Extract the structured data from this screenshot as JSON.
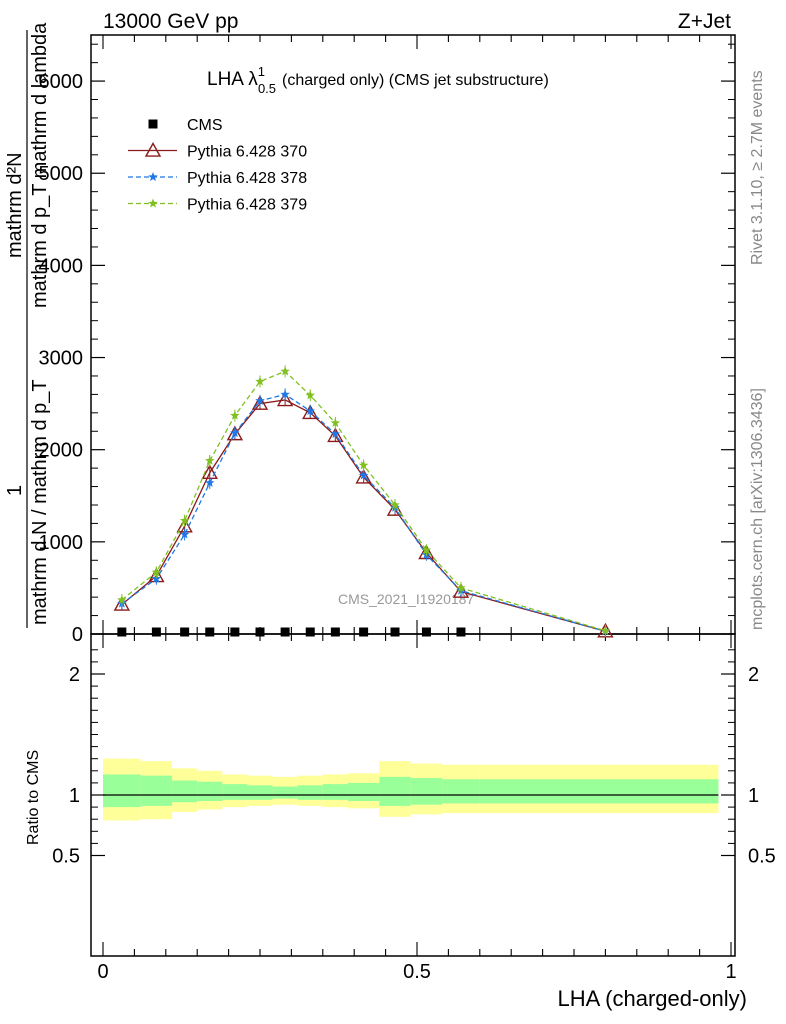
{
  "header": {
    "energy_label": "13000 GeV pp",
    "process_label": "Z+Jet"
  },
  "side": {
    "rivet_label": "Rivet 3.1.10, ≥ 2.7M events",
    "mcplots_label": "mcplots.cern.ch [arXiv:1306.3436]"
  },
  "watermark": "CMS_2021_I1920187",
  "chart_data": [
    {
      "type": "line",
      "title": "LHA λ¹₀.₅ (charged only) (CMS jet substructure)",
      "title_parts": {
        "main": "LHA λ",
        "sup": "1",
        "sub": "0.5",
        "rest": "(charged only) (CMS jet substructure)"
      },
      "ylabel_line1": "mathrm d²N",
      "ylabel_line2": "mathrm d p_T mathrm d lambda",
      "ylabel_line3": "mathrm d N / mathrm d p_T",
      "ylabel_factor": "1",
      "xlim": [
        0,
        1
      ],
      "ylim": [
        0,
        6500
      ],
      "yticks": [
        0,
        1000,
        2000,
        3000,
        4000,
        5000,
        6000
      ],
      "ytick_labels": [
        "0",
        "1000",
        "2000",
        "3000",
        "4000",
        "5000",
        "6000"
      ],
      "legend_position": "top-left",
      "series": [
        {
          "name": "CMS",
          "color": "#000000",
          "marker": "square",
          "x": [
            0.03,
            0.085,
            0.13,
            0.17,
            0.21,
            0.25,
            0.29,
            0.33,
            0.37,
            0.415,
            0.465,
            0.515,
            0.57
          ],
          "y": [
            0,
            0,
            0,
            0,
            0,
            0,
            0,
            0,
            0,
            0,
            0,
            0,
            0
          ]
        },
        {
          "name": "Pythia 6.428 370",
          "color": "#8b1a1a",
          "marker": "triangle",
          "x": [
            0.03,
            0.085,
            0.13,
            0.17,
            0.21,
            0.25,
            0.29,
            0.33,
            0.37,
            0.415,
            0.465,
            0.515,
            0.57,
            0.8
          ],
          "y": [
            320,
            630,
            1170,
            1750,
            2170,
            2500,
            2540,
            2400,
            2150,
            1700,
            1350,
            880,
            460,
            30
          ]
        },
        {
          "name": "Pythia 6.428 378",
          "color": "#1e78e6",
          "marker": "star",
          "x": [
            0.03,
            0.085,
            0.13,
            0.17,
            0.21,
            0.25,
            0.29,
            0.33,
            0.37,
            0.415,
            0.465,
            0.515,
            0.57,
            0.8
          ],
          "y": [
            330,
            600,
            1080,
            1640,
            2180,
            2530,
            2600,
            2420,
            2170,
            1720,
            1370,
            860,
            470,
            30
          ]
        },
        {
          "name": "Pythia 6.428 379",
          "color": "#80c020",
          "marker": "star",
          "x": [
            0.03,
            0.085,
            0.13,
            0.17,
            0.21,
            0.25,
            0.29,
            0.33,
            0.37,
            0.415,
            0.465,
            0.515,
            0.57,
            0.8
          ],
          "y": [
            370,
            670,
            1230,
            1880,
            2370,
            2740,
            2850,
            2590,
            2290,
            1830,
            1400,
            910,
            500,
            35
          ]
        }
      ]
    },
    {
      "type": "area",
      "ylabel": "Ratio to CMS",
      "xlabel": "LHA (charged-only)",
      "xlim": [
        0,
        1
      ],
      "ylim": [
        0.38,
        2.3
      ],
      "xticks": [
        0,
        0.5,
        1
      ],
      "xtick_labels": [
        "0",
        "0.5",
        "1"
      ],
      "yticks": [
        0.5,
        1,
        2
      ],
      "ytick_labels": [
        "0.5",
        "1",
        "2"
      ],
      "bin_edges": [
        0.0,
        0.06,
        0.11,
        0.15,
        0.19,
        0.23,
        0.27,
        0.31,
        0.35,
        0.39,
        0.44,
        0.49,
        0.54,
        0.6,
        1.0
      ],
      "bin_range_shown": [
        0.0,
        0.98
      ],
      "yellow_band_low": [
        0.79,
        0.8,
        0.86,
        0.88,
        0.9,
        0.91,
        0.92,
        0.91,
        0.9,
        0.89,
        0.82,
        0.84,
        0.85,
        0.85
      ],
      "yellow_band_high": [
        1.3,
        1.28,
        1.22,
        1.2,
        1.17,
        1.16,
        1.15,
        1.16,
        1.17,
        1.18,
        1.28,
        1.26,
        1.25,
        1.25
      ],
      "green_band_low": [
        0.9,
        0.91,
        0.94,
        0.95,
        0.96,
        0.96,
        0.97,
        0.96,
        0.96,
        0.95,
        0.91,
        0.92,
        0.93,
        0.93
      ],
      "green_band_high": [
        1.17,
        1.16,
        1.12,
        1.11,
        1.09,
        1.08,
        1.07,
        1.08,
        1.09,
        1.1,
        1.15,
        1.14,
        1.13,
        1.13
      ],
      "band_colors": {
        "yellow": "#ffff99",
        "green": "#99ff99"
      },
      "reference_line": 1
    }
  ]
}
